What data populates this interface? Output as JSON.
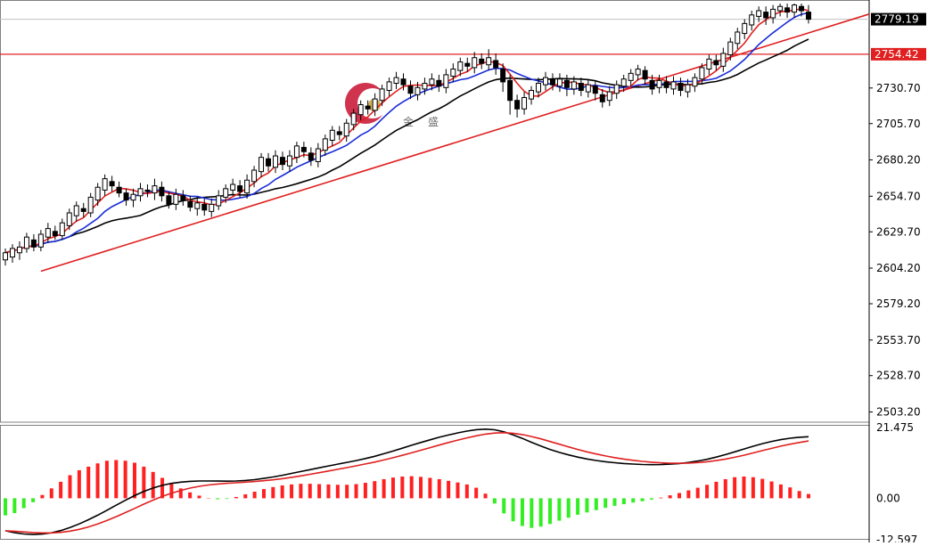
{
  "chart_data": {
    "type": "candlestick",
    "watermark": {
      "text": "金盛"
    },
    "price_axis": {
      "ticks": [
        "2730.70",
        "2705.70",
        "2680.20",
        "2654.70",
        "2629.70",
        "2604.20",
        "2579.20",
        "2553.70",
        "2528.70",
        "2503.20"
      ],
      "range": [
        2496,
        2790
      ],
      "current_price": "2779.19",
      "resistance_label": "2754.42",
      "resistance_value": 2754.42
    },
    "candles": [
      [
        2610,
        2615,
        2606,
        2618
      ],
      [
        2612,
        2618,
        2608,
        2621
      ],
      [
        2615,
        2619,
        2610,
        2623
      ],
      [
        2618,
        2626,
        2615,
        2629
      ],
      [
        2624,
        2619,
        2616,
        2628
      ],
      [
        2619,
        2628,
        2616,
        2631
      ],
      [
        2626,
        2632,
        2622,
        2636
      ],
      [
        2630,
        2627,
        2624,
        2634
      ],
      [
        2627,
        2636,
        2624,
        2639
      ],
      [
        2634,
        2643,
        2631,
        2646
      ],
      [
        2641,
        2648,
        2637,
        2651
      ],
      [
        2646,
        2644,
        2640,
        2650
      ],
      [
        2643,
        2654,
        2640,
        2657
      ],
      [
        2652,
        2661,
        2648,
        2664
      ],
      [
        2659,
        2667,
        2655,
        2670
      ],
      [
        2665,
        2662,
        2658,
        2669
      ],
      [
        2661,
        2657,
        2654,
        2665
      ],
      [
        2657,
        2652,
        2648,
        2660
      ],
      [
        2652,
        2656,
        2647,
        2660
      ],
      [
        2655,
        2660,
        2651,
        2664
      ],
      [
        2659,
        2658,
        2654,
        2663
      ],
      [
        2657,
        2662,
        2652,
        2667
      ],
      [
        2661,
        2655,
        2651,
        2665
      ],
      [
        2655,
        2649,
        2646,
        2658
      ],
      [
        2649,
        2656,
        2645,
        2660
      ],
      [
        2655,
        2652,
        2648,
        2659
      ],
      [
        2651,
        2647,
        2644,
        2655
      ],
      [
        2646,
        2650,
        2641,
        2654
      ],
      [
        2649,
        2645,
        2641,
        2653
      ],
      [
        2644,
        2649,
        2640,
        2653
      ],
      [
        2648,
        2655,
        2645,
        2659
      ],
      [
        2654,
        2660,
        2650,
        2663
      ],
      [
        2659,
        2663,
        2655,
        2667
      ],
      [
        2662,
        2658,
        2654,
        2666
      ],
      [
        2657,
        2666,
        2653,
        2670
      ],
      [
        2665,
        2673,
        2661,
        2676
      ],
      [
        2672,
        2682,
        2668,
        2685
      ],
      [
        2681,
        2676,
        2672,
        2685
      ],
      [
        2675,
        2683,
        2671,
        2687
      ],
      [
        2682,
        2677,
        2673,
        2686
      ],
      [
        2676,
        2683,
        2672,
        2687
      ],
      [
        2682,
        2690,
        2678,
        2693
      ],
      [
        2689,
        2686,
        2682,
        2693
      ],
      [
        2685,
        2680,
        2676,
        2689
      ],
      [
        2679,
        2688,
        2675,
        2692
      ],
      [
        2687,
        2695,
        2683,
        2698
      ],
      [
        2694,
        2701,
        2690,
        2704
      ],
      [
        2700,
        2698,
        2694,
        2704
      ],
      [
        2697,
        2706,
        2693,
        2709
      ],
      [
        2705,
        2713,
        2701,
        2716
      ],
      [
        2712,
        2719,
        2708,
        2722
      ],
      [
        2718,
        2716,
        2712,
        2722
      ],
      [
        2715,
        2723,
        2711,
        2727
      ],
      [
        2722,
        2730,
        2718,
        2733
      ],
      [
        2729,
        2735,
        2725,
        2738
      ],
      [
        2734,
        2738,
        2730,
        2742
      ],
      [
        2737,
        2733,
        2729,
        2741
      ],
      [
        2732,
        2727,
        2723,
        2736
      ],
      [
        2726,
        2731,
        2722,
        2735
      ],
      [
        2730,
        2734,
        2726,
        2738
      ],
      [
        2733,
        2737,
        2729,
        2741
      ],
      [
        2736,
        2732,
        2728,
        2740
      ],
      [
        2731,
        2740,
        2727,
        2744
      ],
      [
        2739,
        2744,
        2735,
        2748
      ],
      [
        2743,
        2749,
        2739,
        2752
      ],
      [
        2748,
        2746,
        2742,
        2752
      ],
      [
        2745,
        2752,
        2741,
        2756
      ],
      [
        2751,
        2748,
        2744,
        2755
      ],
      [
        2747,
        2752,
        2743,
        2758
      ],
      [
        2750,
        2745,
        2740,
        2755
      ],
      [
        2744,
        2735,
        2728,
        2748
      ],
      [
        2736,
        2722,
        2712,
        2740
      ],
      [
        2722,
        2716,
        2710,
        2726
      ],
      [
        2716,
        2724,
        2712,
        2728
      ],
      [
        2723,
        2729,
        2719,
        2732
      ],
      [
        2728,
        2734,
        2724,
        2738
      ],
      [
        2733,
        2738,
        2729,
        2742
      ],
      [
        2737,
        2733,
        2729,
        2741
      ],
      [
        2732,
        2737,
        2728,
        2741
      ],
      [
        2736,
        2731,
        2725,
        2740
      ],
      [
        2730,
        2735,
        2726,
        2739
      ],
      [
        2734,
        2729,
        2725,
        2738
      ],
      [
        2728,
        2733,
        2724,
        2737
      ],
      [
        2732,
        2727,
        2722,
        2736
      ],
      [
        2726,
        2721,
        2717,
        2730
      ],
      [
        2722,
        2728,
        2718,
        2732
      ],
      [
        2727,
        2733,
        2723,
        2736
      ],
      [
        2732,
        2737,
        2728,
        2740
      ],
      [
        2736,
        2741,
        2732,
        2744
      ],
      [
        2740,
        2744,
        2736,
        2747
      ],
      [
        2743,
        2737,
        2733,
        2746
      ],
      [
        2736,
        2730,
        2726,
        2740
      ],
      [
        2731,
        2736,
        2727,
        2740
      ],
      [
        2735,
        2731,
        2727,
        2739
      ],
      [
        2730,
        2735,
        2726,
        2739
      ],
      [
        2734,
        2729,
        2725,
        2738
      ],
      [
        2728,
        2733,
        2724,
        2737
      ],
      [
        2732,
        2738,
        2728,
        2741
      ],
      [
        2737,
        2745,
        2733,
        2748
      ],
      [
        2744,
        2751,
        2740,
        2754
      ],
      [
        2750,
        2747,
        2743,
        2754
      ],
      [
        2746,
        2755,
        2742,
        2759
      ],
      [
        2754,
        2763,
        2750,
        2766
      ],
      [
        2762,
        2770,
        2758,
        2773
      ],
      [
        2769,
        2776,
        2765,
        2779
      ],
      [
        2775,
        2782,
        2771,
        2785
      ],
      [
        2781,
        2785,
        2777,
        2788
      ],
      [
        2784,
        2780,
        2775,
        2788
      ],
      [
        2780,
        2786,
        2776,
        2789
      ],
      [
        2785,
        2788,
        2781,
        2790
      ],
      [
        2787,
        2784,
        2780,
        2790
      ],
      [
        2784,
        2789,
        2780,
        2790
      ],
      [
        2788,
        2785,
        2781,
        2790
      ],
      [
        2784,
        2779,
        2776,
        2789
      ]
    ],
    "macd": {
      "ticks": [
        "21.475",
        "0.00",
        "-12.597"
      ],
      "range": [
        -12.597,
        21.475
      ],
      "histogram": [
        -5.2,
        -4.5,
        -3.0,
        -1.2,
        1.0,
        3.0,
        5.0,
        7.0,
        8.5,
        9.6,
        10.6,
        11.4,
        11.6,
        11.4,
        10.8,
        9.6,
        8.0,
        6.2,
        4.4,
        3.0,
        1.8,
        0.8,
        0.1,
        -0.3,
        -0.2,
        0.4,
        1.2,
        2.0,
        2.8,
        3.4,
        3.9,
        4.2,
        4.4,
        4.4,
        4.3,
        4.2,
        4.1,
        4.1,
        4.3,
        4.7,
        5.2,
        5.8,
        6.3,
        6.6,
        6.7,
        6.5,
        6.2,
        5.8,
        5.3,
        4.8,
        4.2,
        3.2,
        1.4,
        -1.6,
        -4.6,
        -7.0,
        -8.4,
        -9.0,
        -8.6,
        -7.8,
        -6.8,
        -5.9,
        -5.0,
        -4.3,
        -3.6,
        -2.9,
        -2.3,
        -1.8,
        -1.3,
        -0.9,
        -0.4,
        0.2,
        0.9,
        1.6,
        2.4,
        3.2,
        4.1,
        5.0,
        5.8,
        6.4,
        6.6,
        6.4,
        5.9,
        5.1,
        4.2,
        3.3,
        2.2,
        1.3
      ]
    }
  }
}
